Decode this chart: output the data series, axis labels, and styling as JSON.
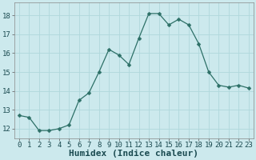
{
  "x": [
    0,
    1,
    2,
    3,
    4,
    5,
    6,
    7,
    8,
    9,
    10,
    11,
    12,
    13,
    14,
    15,
    16,
    17,
    18,
    19,
    20,
    21,
    22,
    23
  ],
  "y": [
    12.7,
    12.6,
    11.9,
    11.9,
    12.0,
    12.2,
    13.5,
    13.9,
    15.0,
    16.2,
    15.9,
    15.4,
    16.8,
    18.1,
    18.1,
    17.5,
    17.8,
    17.5,
    16.5,
    15.0,
    14.3,
    14.2,
    14.3,
    14.15
  ],
  "line_color": "#2d7067",
  "marker": "D",
  "marker_size": 2.5,
  "bg_color": "#cce9ed",
  "grid_color": "#b0d8dc",
  "xlabel": "Humidex (Indice chaleur)",
  "xlabel_fontsize": 8,
  "ylim": [
    11.5,
    18.7
  ],
  "xlim": [
    -0.5,
    23.5
  ],
  "yticks": [
    12,
    13,
    14,
    15,
    16,
    17,
    18
  ],
  "xticks": [
    0,
    1,
    2,
    3,
    4,
    5,
    6,
    7,
    8,
    9,
    10,
    11,
    12,
    13,
    14,
    15,
    16,
    17,
    18,
    19,
    20,
    21,
    22,
    23
  ],
  "tick_fontsize": 6.5,
  "linewidth": 0.9
}
